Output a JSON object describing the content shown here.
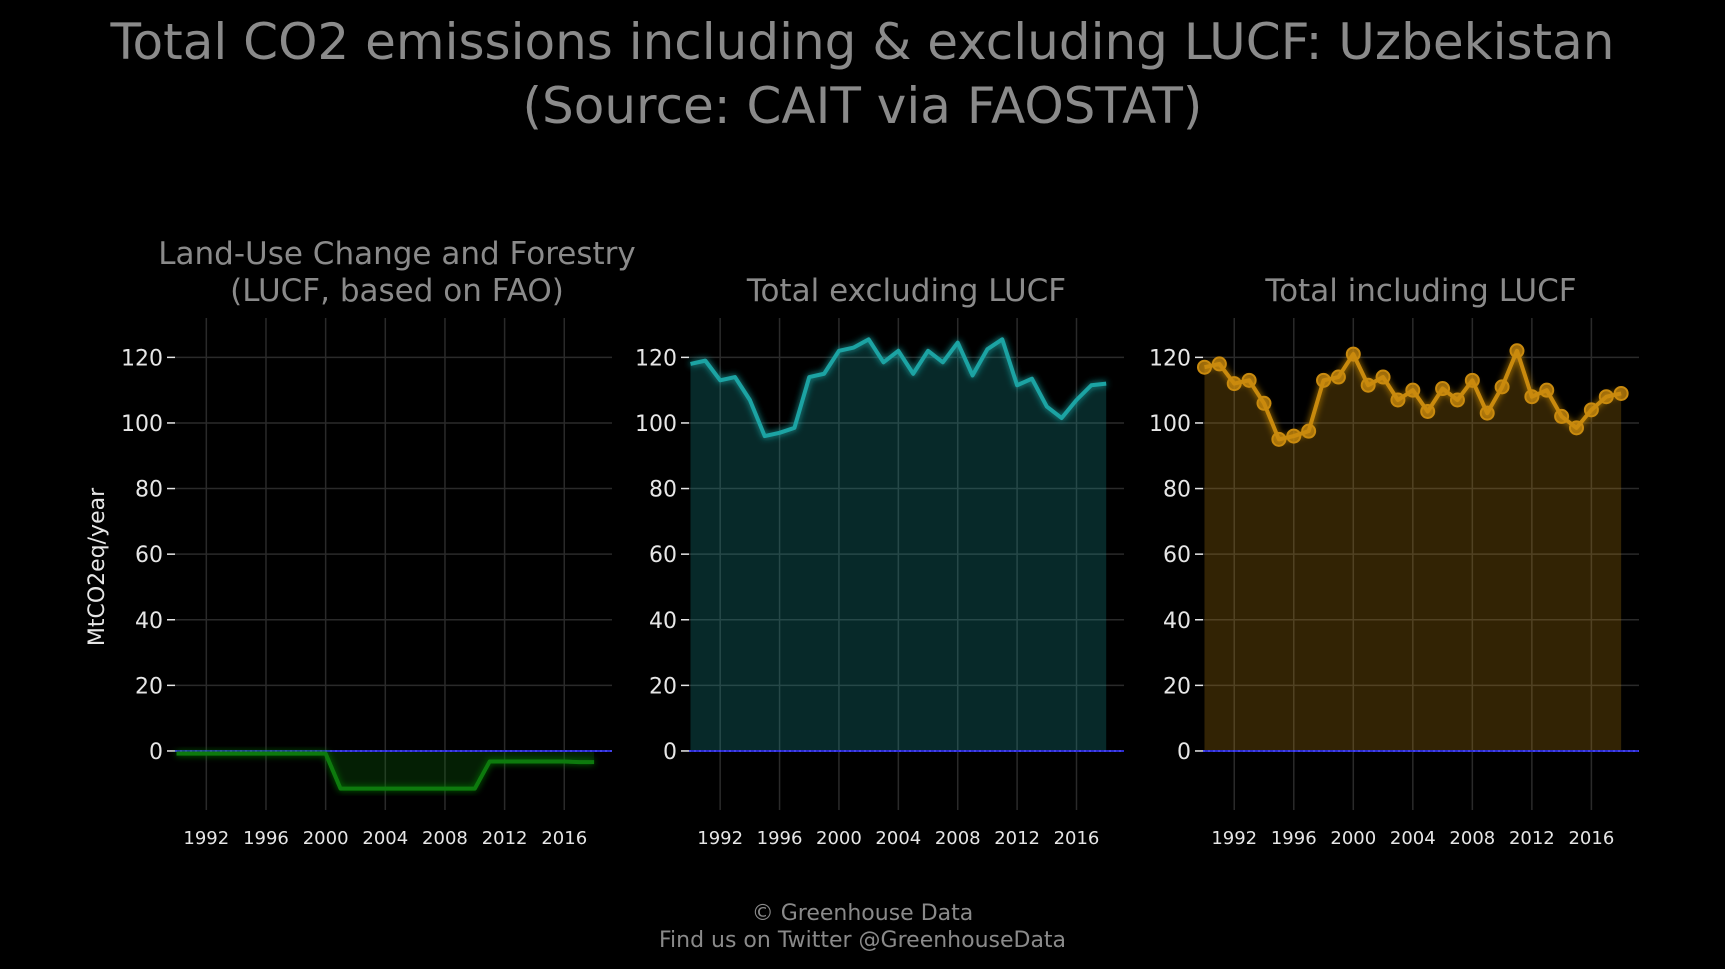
{
  "title": {
    "line1": "Total CO2 emissions including & excluding LUCF: Uzbekistan",
    "line2": "(Source: CAIT via FAOSTAT)"
  },
  "footer": {
    "line1": "© Greenhouse Data",
    "line2": "Find us on Twitter @GreenhouseData"
  },
  "colors": {
    "background": "#000000",
    "grid": "#2a2a2a",
    "text": "#8a8a8a",
    "tick_text": "#e6e6e6",
    "zero_line": "#2b2bcf",
    "lucf": "#117a11",
    "excl": "#1aa3a3",
    "incl": "#c98a0e"
  },
  "chart_data": [
    {
      "type": "area",
      "title_lines": [
        "Land-Use Change and Forestry",
        "(LUCF, based on FAO)"
      ],
      "ylabel": "MtCO2eq/year",
      "xticks": [
        1992,
        1996,
        2000,
        2004,
        2008,
        2012,
        2016
      ],
      "yticks": [
        0,
        20,
        40,
        60,
        80,
        100,
        120
      ],
      "xlim": [
        1989.9,
        2019.2
      ],
      "ylim": [
        -18,
        132
      ],
      "grid": true,
      "markers": false,
      "color_key": "lucf",
      "x": [
        1990,
        1991,
        1992,
        1993,
        1994,
        1995,
        1996,
        1997,
        1998,
        1999,
        2000,
        2001,
        2002,
        2003,
        2004,
        2005,
        2006,
        2007,
        2008,
        2009,
        2010,
        2011,
        2012,
        2013,
        2014,
        2015,
        2016,
        2017,
        2018
      ],
      "values": [
        -0.8,
        -0.8,
        -0.8,
        -0.8,
        -0.8,
        -0.8,
        -0.8,
        -0.8,
        -0.8,
        -0.8,
        -0.8,
        -11.5,
        -11.5,
        -11.5,
        -11.5,
        -11.5,
        -11.5,
        -11.5,
        -11.5,
        -11.5,
        -11.5,
        -3.2,
        -3.2,
        -3.2,
        -3.2,
        -3.2,
        -3.2,
        -3.4,
        -3.4
      ]
    },
    {
      "type": "area",
      "title_lines": [
        "Total excluding LUCF"
      ],
      "ylabel": "",
      "xticks": [
        1992,
        1996,
        2000,
        2004,
        2008,
        2012,
        2016
      ],
      "yticks": [
        0,
        20,
        40,
        60,
        80,
        100,
        120
      ],
      "xlim": [
        1989.9,
        2019.2
      ],
      "ylim": [
        -18,
        132
      ],
      "grid": true,
      "markers": false,
      "color_key": "excl",
      "x": [
        1990,
        1991,
        1992,
        1993,
        1994,
        1995,
        1996,
        1997,
        1998,
        1999,
        2000,
        2001,
        2002,
        2003,
        2004,
        2005,
        2006,
        2007,
        2008,
        2009,
        2010,
        2011,
        2012,
        2013,
        2014,
        2015,
        2016,
        2017,
        2018
      ],
      "values": [
        118,
        119,
        113,
        114,
        107,
        96,
        97,
        98.5,
        114,
        115,
        122,
        123,
        125.5,
        118.5,
        122,
        115,
        122,
        118.5,
        124.5,
        114.5,
        122.5,
        125.5,
        111.5,
        113.5,
        105,
        101.5,
        107,
        111.5,
        112
      ]
    },
    {
      "type": "area",
      "title_lines": [
        "Total including LUCF"
      ],
      "ylabel": "",
      "xticks": [
        1992,
        1996,
        2000,
        2004,
        2008,
        2012,
        2016
      ],
      "yticks": [
        0,
        20,
        40,
        60,
        80,
        100,
        120
      ],
      "xlim": [
        1989.9,
        2019.2
      ],
      "ylim": [
        -18,
        132
      ],
      "grid": true,
      "markers": true,
      "color_key": "incl",
      "x": [
        1990,
        1991,
        1992,
        1993,
        1994,
        1995,
        1996,
        1997,
        1998,
        1999,
        2000,
        2001,
        2002,
        2003,
        2004,
        2005,
        2006,
        2007,
        2008,
        2009,
        2010,
        2011,
        2012,
        2013,
        2014,
        2015,
        2016,
        2017,
        2018
      ],
      "values": [
        117,
        118,
        112,
        113,
        106,
        95,
        96,
        97.5,
        113,
        114,
        121,
        111.5,
        114,
        107,
        110,
        103.5,
        110.5,
        107,
        113,
        103,
        111,
        122,
        108,
        110,
        102,
        98.5,
        104,
        108,
        109
      ]
    }
  ]
}
